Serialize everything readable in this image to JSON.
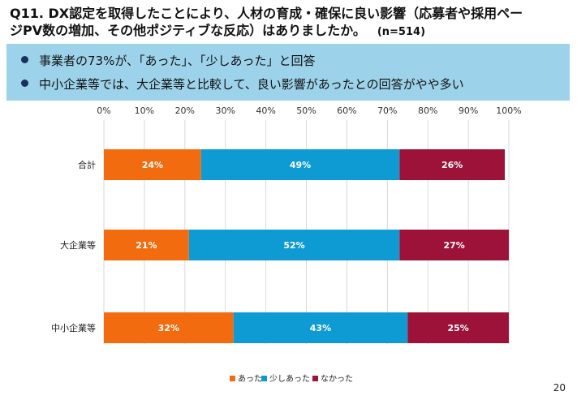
{
  "title": {
    "line1": "Q11.  DX認定を取得したことにより、人材の育成・確保に良い影響（応募者や採用ペー",
    "line2": "ジPV数の増加、その他ポジティブな反応）はありましたか。",
    "n": "(n=514)"
  },
  "summary": [
    "事業者の73%が、「あった」、「少しあった」と回答",
    "中小企業等では、大企業等と比較して、良い影響があったとの回答がやや多い"
  ],
  "page_number": "20",
  "chart_data": {
    "type": "bar",
    "orientation": "horizontal",
    "stacked": true,
    "categories": [
      "合計",
      "大企業等",
      "中小企業等"
    ],
    "series": [
      {
        "name": "あった",
        "values": [
          24,
          21,
          32
        ],
        "color": "#f26b0f"
      },
      {
        "name": "少しあった",
        "values": [
          49,
          52,
          43
        ],
        "color": "#0e9bd4"
      },
      {
        "name": "なかった",
        "values": [
          26,
          27,
          25
        ],
        "color": "#9c1238"
      }
    ],
    "value_labels": [
      [
        "24%",
        "49%",
        "26%"
      ],
      [
        "21%",
        "52%",
        "27%"
      ],
      [
        "32%",
        "43%",
        "25%"
      ]
    ],
    "xlim": [
      0,
      100
    ],
    "ticks": [
      "0%",
      "10%",
      "20%",
      "30%",
      "40%",
      "50%",
      "60%",
      "70%",
      "80%",
      "90%",
      "100%"
    ],
    "grid": true,
    "legend_position": "bottom"
  }
}
